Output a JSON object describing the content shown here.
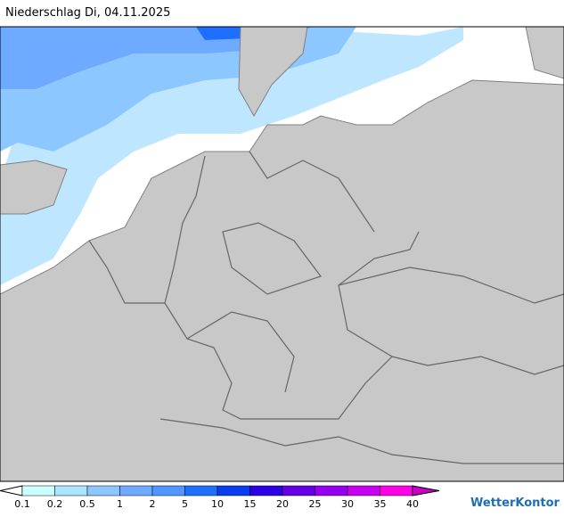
{
  "title": "Niederschlag Di, 04.11.2025",
  "legend": {
    "labels": [
      "0.1",
      "0.2",
      "0.5",
      "1",
      "2",
      "5",
      "10",
      "15",
      "20",
      "25",
      "30",
      "35",
      "40"
    ],
    "colors": [
      "#ccffff",
      "#aae6ff",
      "#8cc8ff",
      "#6eaaff",
      "#5096ff",
      "#1e6eff",
      "#0a3cf0",
      "#2a00e6",
      "#6400e6",
      "#9600f0",
      "#c800f0",
      "#ff00e6"
    ]
  },
  "brand": "WetterKontor"
}
